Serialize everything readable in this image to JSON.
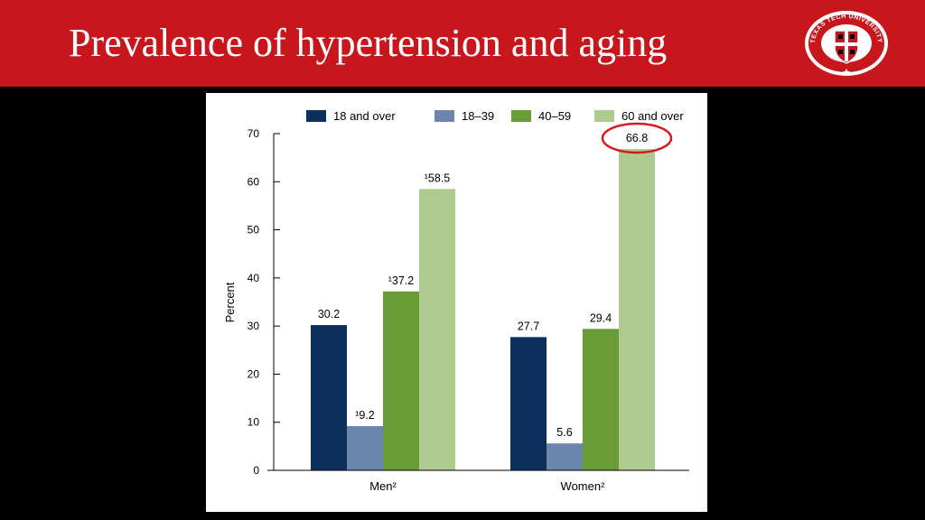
{
  "slide": {
    "title": "Prevalence of hypertension and aging",
    "logo_text": "TEXAS TECH UNIVERSITY SYSTEM"
  },
  "colors": {
    "header_bg": "#c8161d",
    "highlight": "#d7191c"
  },
  "chart_data": {
    "type": "bar",
    "categories": [
      "Men²",
      "Women²"
    ],
    "series": [
      {
        "name": "18 and over",
        "color": "#0d2f5e",
        "values": [
          30.2,
          27.7
        ],
        "labels": [
          "30.2",
          "27.7"
        ]
      },
      {
        "name": "18–39",
        "color": "#6b86ad",
        "values": [
          9.2,
          5.6
        ],
        "labels": [
          "¹9.2",
          "5.6"
        ]
      },
      {
        "name": "40–59",
        "color": "#6a9c35",
        "values": [
          37.2,
          29.4
        ],
        "labels": [
          "¹37.2",
          "29.4"
        ]
      },
      {
        "name": "60 and over",
        "color": "#aecb8f",
        "values": [
          58.5,
          66.8
        ],
        "labels": [
          "¹58.5",
          "66.8"
        ]
      }
    ],
    "ylabel": "Percent",
    "ylim": [
      0,
      70
    ],
    "yticks": [
      0,
      10,
      20,
      30,
      40,
      50,
      60,
      70
    ],
    "legend": "top",
    "grid": false,
    "annotations": [
      {
        "type": "circle",
        "target": "Women² / 60 and over",
        "value": "66.8"
      }
    ]
  }
}
